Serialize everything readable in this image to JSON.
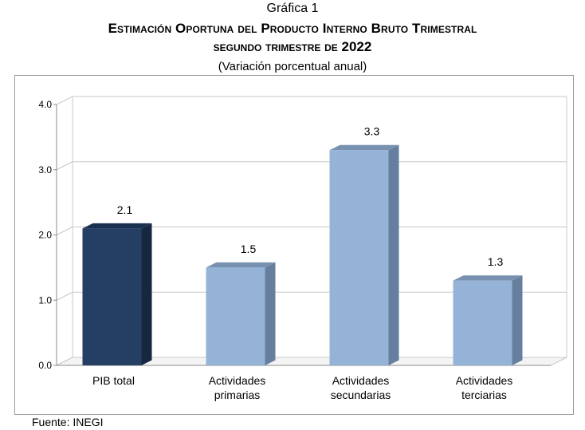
{
  "header": {
    "label": "Gráfica 1",
    "title_line1": "Estimación Oportuna del Producto Interno Bruto Trimestral",
    "title_line2": "segundo trimestre de 2022",
    "subtitle": "(Variación porcentual anual)"
  },
  "chart_data": {
    "type": "bar",
    "title": "Estimación Oportuna del Producto Interno Bruto Trimestral segundo trimestre de 2022",
    "subtitle": "(Variación porcentual anual)",
    "categories": [
      [
        "PIB total"
      ],
      [
        "Actividades",
        "primarias"
      ],
      [
        "Actividades",
        "secundarias"
      ],
      [
        "Actividades",
        "terciarias"
      ]
    ],
    "values": [
      2.1,
      1.5,
      3.3,
      1.3
    ],
    "data_labels": [
      "2.1",
      "1.5",
      "3.3",
      "1.3"
    ],
    "y_ticks": [
      "0.0",
      "1.0",
      "2.0",
      "3.0",
      "4.0"
    ],
    "ylim": [
      0,
      4
    ],
    "xlabel": "",
    "ylabel": "",
    "grid": true,
    "legend": "none",
    "colors": {
      "highlight": "#243f63",
      "highlight_side": "#16283f",
      "highlight_top": "#1a3050",
      "base": "#95b3d7",
      "base_side": "#667f9f",
      "base_top": "#7891b1",
      "grid": "#c8c8c8",
      "axis": "#8c8c8c",
      "wall": "#ffffff"
    }
  },
  "footer": {
    "source": "Fuente: INEGI"
  }
}
